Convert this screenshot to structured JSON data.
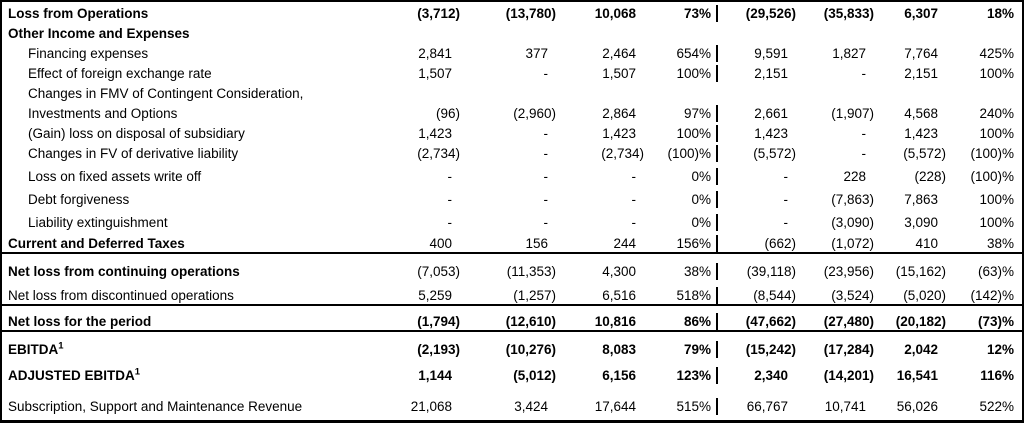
{
  "colors": {
    "text": "#000000",
    "background": "#ffffff",
    "border": "#000000"
  },
  "table": {
    "rows": [
      {
        "label": "Loss from Operations",
        "indent": false,
        "bold_label": true,
        "bold_values": true,
        "spacing": "normal",
        "rule_below": false,
        "values": [
          "(3,712)",
          "(13,780)",
          "10,068",
          "73%",
          "(29,526)",
          "(35,833)",
          "6,307",
          "18%"
        ]
      },
      {
        "label": "Other Income and Expenses",
        "indent": false,
        "bold_label": true,
        "bold_values": false,
        "spacing": "normal",
        "rule_below": false,
        "values": [
          "",
          "",
          "",
          "",
          "",
          "",
          "",
          ""
        ]
      },
      {
        "label": "Financing expenses",
        "indent": true,
        "bold_label": false,
        "bold_values": false,
        "spacing": "normal",
        "rule_below": false,
        "values": [
          "2,841",
          "377",
          "2,464",
          "654%",
          "9,591",
          "1,827",
          "7,764",
          "425%"
        ]
      },
      {
        "label": "Effect of foreign exchange rate",
        "indent": true,
        "bold_label": false,
        "bold_values": false,
        "spacing": "normal",
        "rule_below": false,
        "values": [
          "1,507",
          "-",
          "1,507",
          "100%",
          "2,151",
          "-",
          "2,151",
          "100%"
        ]
      },
      {
        "label": "Changes in FMV of Contingent Consideration,",
        "indent": true,
        "bold_label": false,
        "bold_values": false,
        "spacing": "normal",
        "rule_below": false,
        "values": [
          "",
          "",
          "",
          "",
          "",
          "",
          "",
          ""
        ]
      },
      {
        "label": "Investments and Options",
        "indent": true,
        "bold_label": false,
        "bold_values": false,
        "spacing": "normal",
        "rule_below": false,
        "values": [
          "(96)",
          "(2,960)",
          "2,864",
          "97%",
          "2,661",
          "(1,907)",
          "4,568",
          "240%"
        ]
      },
      {
        "label": "(Gain) loss on disposal of subsidiary",
        "indent": true,
        "bold_label": false,
        "bold_values": false,
        "spacing": "normal",
        "rule_below": false,
        "values": [
          "1,423",
          "-",
          "1,423",
          "100%",
          "1,423",
          "-",
          "1,423",
          "100%"
        ]
      },
      {
        "label": "Changes in FV of derivative liability",
        "indent": true,
        "bold_label": false,
        "bold_values": false,
        "spacing": "normal",
        "rule_below": false,
        "values": [
          "(2,734)",
          "-",
          "(2,734)",
          "(100)%",
          "(5,572)",
          "-",
          "(5,572)",
          "(100)%"
        ]
      },
      {
        "label": "Loss on fixed assets write off",
        "indent": true,
        "bold_label": false,
        "bold_values": false,
        "spacing": "loose",
        "rule_below": false,
        "values": [
          "-",
          "-",
          "-",
          "0%",
          "-",
          "228",
          "(228)",
          "(100)%"
        ]
      },
      {
        "label": "Debt forgiveness",
        "indent": true,
        "bold_label": false,
        "bold_values": false,
        "spacing": "loose",
        "rule_below": false,
        "values": [
          "-",
          "-",
          "-",
          "0%",
          "-",
          "(7,863)",
          "7,863",
          "100%"
        ]
      },
      {
        "label": "Liability extinguishment",
        "indent": true,
        "bold_label": false,
        "bold_values": false,
        "spacing": "loose",
        "rule_below": false,
        "values": [
          "-",
          "-",
          "-",
          "0%",
          "-",
          "(3,090)",
          "3,090",
          "100%"
        ]
      },
      {
        "label": "Current and Deferred Taxes",
        "indent": false,
        "bold_label": true,
        "bold_values": false,
        "spacing": "loose",
        "rule_below": true,
        "values": [
          "400",
          "156",
          "244",
          "156%",
          "(662)",
          "(1,072)",
          "410",
          "38%"
        ]
      },
      {
        "label": "Net loss from continuing operations",
        "indent": false,
        "bold_label": true,
        "bold_values": false,
        "spacing": "looser",
        "rule_below": false,
        "values": [
          "(7,053)",
          "(11,353)",
          "4,300",
          "38%",
          "(39,118)",
          "(23,956)",
          "(15,162)",
          "(63)%"
        ]
      },
      {
        "label": "Net loss from discontinued operations",
        "indent": false,
        "bold_label": false,
        "bold_values": false,
        "spacing": "looser",
        "rule_below": true,
        "values": [
          "5,259",
          "(1,257)",
          "6,516",
          "518%",
          "(8,544)",
          "(3,524)",
          "(5,020)",
          "(142)%"
        ]
      },
      {
        "label": "Net loss for the period",
        "indent": false,
        "bold_label": true,
        "bold_values": true,
        "spacing": "looser",
        "rule_below": true,
        "values": [
          "(1,794)",
          "(12,610)",
          "10,816",
          "86%",
          "(47,662)",
          "(27,480)",
          "(20,182)",
          "(73)%"
        ]
      },
      {
        "label": "EBITDA",
        "sup": "1",
        "indent": false,
        "bold_label": true,
        "bold_values": true,
        "spacing": "looser",
        "rule_below": false,
        "values": [
          "(2,193)",
          "(10,276)",
          "8,083",
          "79%",
          "(15,242)",
          "(17,284)",
          "2,042",
          "12%"
        ]
      },
      {
        "label": "ADJUSTED EBITDA",
        "sup": "1",
        "indent": false,
        "bold_label": true,
        "bold_values": true,
        "spacing": "looser",
        "rule_below": false,
        "values": [
          "1,144",
          "(5,012)",
          "6,156",
          "123%",
          "2,340",
          "(14,201)",
          "16,541",
          "116%"
        ]
      },
      {
        "label": "Subscription, Support and Maintenance Revenue",
        "indent": false,
        "bold_label": false,
        "bold_values": false,
        "spacing": "last",
        "rule_below": false,
        "values": [
          "21,068",
          "3,424",
          "17,644",
          "515%",
          "66,767",
          "10,741",
          "56,026",
          "522%"
        ]
      }
    ]
  }
}
